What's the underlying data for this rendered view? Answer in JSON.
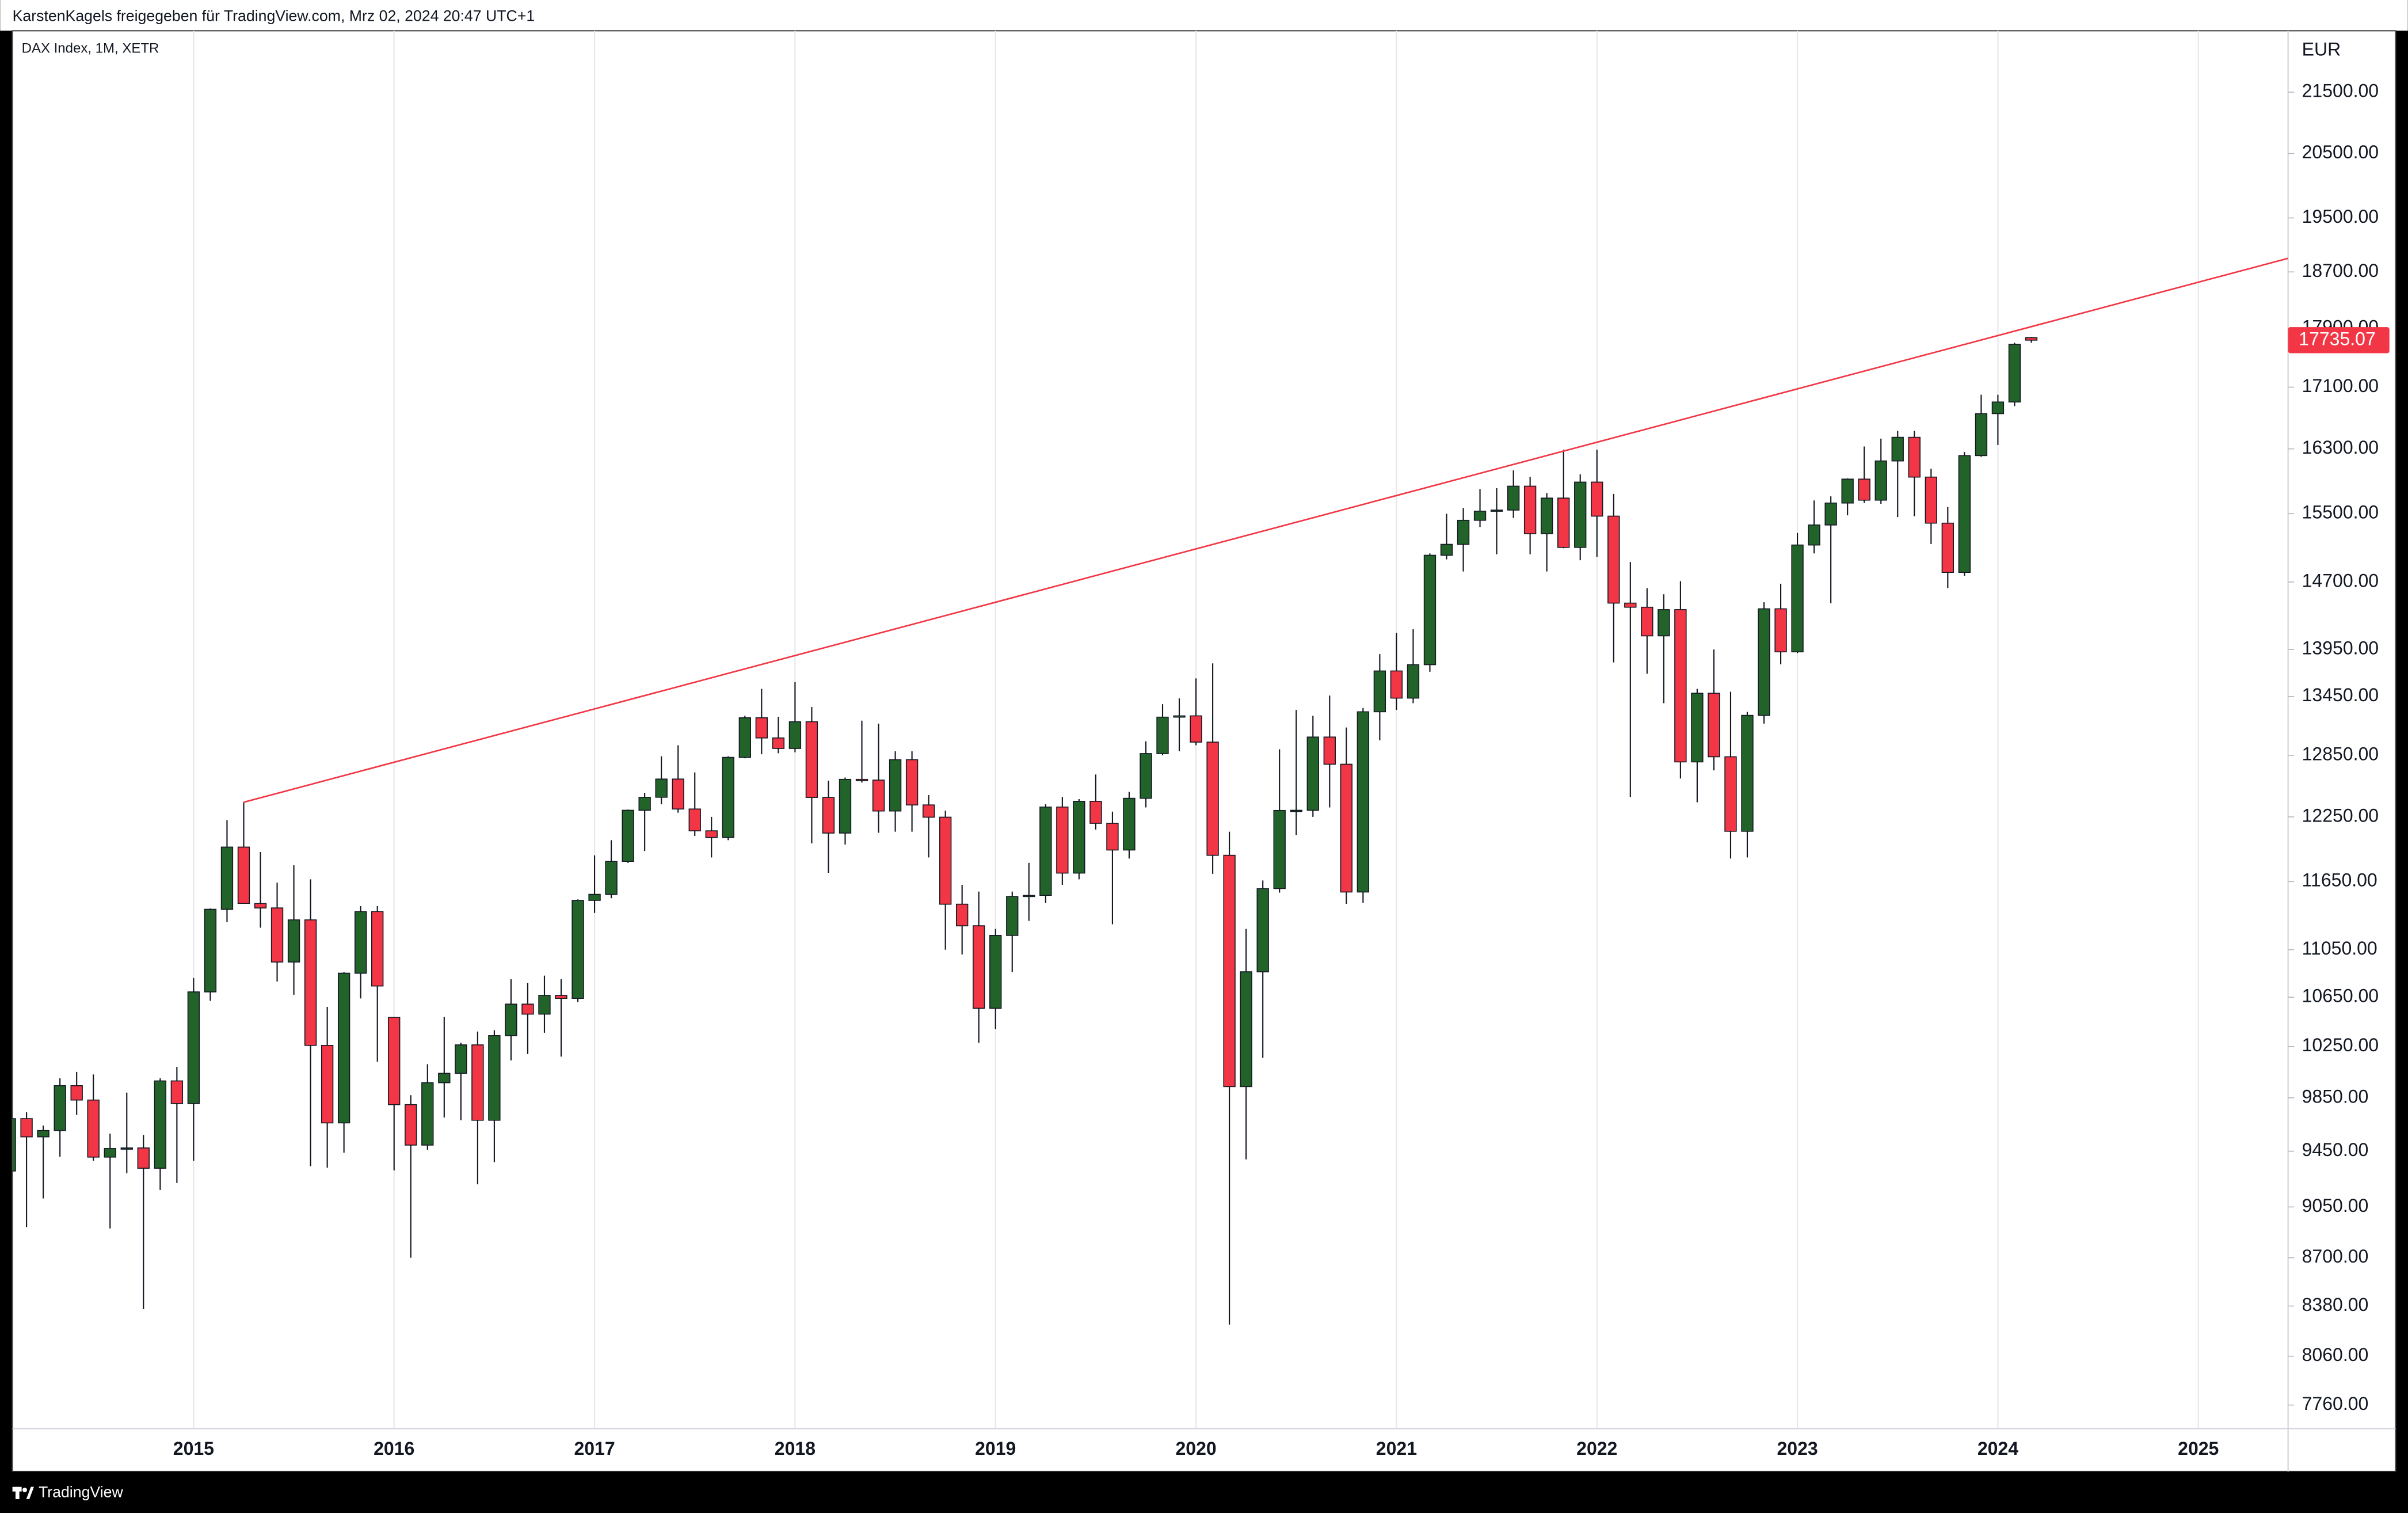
{
  "chart_data": {
    "type": "candlestick",
    "header": "KarstenKagels freigegeben für TradingView.com, Mrz 02, 2024 20:47 UTC+1",
    "title": "DAX Index, 1M, XETR",
    "currency": "EUR",
    "brand": "TradingView",
    "log_scale": true,
    "grid": "vertical",
    "up_color": "#22632a",
    "down_color": "#f23645",
    "ylim": [
      7620,
      22550
    ],
    "yticks": [
      {
        "value": 7760,
        "label": "7760.00"
      },
      {
        "value": 8060,
        "label": "8060.00"
      },
      {
        "value": 8380,
        "label": "8380.00"
      },
      {
        "value": 8700,
        "label": "8700.00"
      },
      {
        "value": 9050,
        "label": "9050.00"
      },
      {
        "value": 9450,
        "label": "9450.00"
      },
      {
        "value": 9850,
        "label": "9850.00"
      },
      {
        "value": 10250,
        "label": "10250.00"
      },
      {
        "value": 10650,
        "label": "10650.00"
      },
      {
        "value": 11050,
        "label": "11050.00"
      },
      {
        "value": 11650,
        "label": "11650.00"
      },
      {
        "value": 12250,
        "label": "12250.00"
      },
      {
        "value": 12850,
        "label": "12850.00"
      },
      {
        "value": 13450,
        "label": "13450.00"
      },
      {
        "value": 13950,
        "label": "13950.00"
      },
      {
        "value": 14700,
        "label": "14700.00"
      },
      {
        "value": 15500,
        "label": "15500.00"
      },
      {
        "value": 16300,
        "label": "16300.00"
      },
      {
        "value": 17100,
        "label": "17100.00"
      },
      {
        "value": 17900,
        "label": "17900.00"
      },
      {
        "value": 18700,
        "label": "18700.00"
      },
      {
        "value": 19500,
        "label": "19500.00"
      },
      {
        "value": 20500,
        "label": "20500.00"
      },
      {
        "value": 21500,
        "label": "21500.00"
      }
    ],
    "categories": [
      null,
      null,
      null,
      null,
      null,
      null,
      null,
      null,
      null,
      null,
      null,
      "2015",
      null,
      null,
      null,
      null,
      null,
      null,
      null,
      null,
      null,
      null,
      null,
      "2016",
      null,
      null,
      null,
      null,
      null,
      null,
      null,
      null,
      null,
      null,
      null,
      "2017",
      null,
      null,
      null,
      null,
      null,
      null,
      null,
      null,
      null,
      null,
      null,
      "2018",
      null,
      null,
      null,
      null,
      null,
      null,
      null,
      null,
      null,
      null,
      null,
      "2019",
      null,
      null,
      null,
      null,
      null,
      null,
      null,
      null,
      null,
      null,
      null,
      "2020",
      null,
      null,
      null,
      null,
      null,
      null,
      null,
      null,
      null,
      null,
      null,
      "2021",
      null,
      null,
      null,
      null,
      null,
      null,
      null,
      null,
      null,
      null,
      null,
      "2022",
      null,
      null,
      null,
      null,
      null,
      null,
      null,
      null,
      null,
      null,
      null,
      "2023",
      null,
      null,
      null,
      null,
      null,
      null,
      null,
      null,
      null,
      null,
      null,
      "2024",
      null,
      null,
      null,
      null,
      null,
      null,
      null,
      null,
      null,
      null,
      null,
      "2025",
      null,
      null,
      null,
      null
    ],
    "open": [
      9306,
      9692,
      9556,
      9603,
      9943,
      9833,
      9407,
      9470,
      9474,
      9326,
      9980,
      9806,
      10694,
      11402,
      11966,
      11454,
      11414,
      10945,
      11309,
      10259,
      9660,
      10850,
      11382,
      10485,
      9798,
      9495,
      9966,
      10039,
      10263,
      9680,
      10337,
      10593,
      10511,
      10665,
      10640,
      11481,
      11535,
      11834,
      12313,
      12438,
      12615,
      12325,
      12118,
      12056,
      12829,
      13230,
      13024,
      12918,
      13189,
      12436,
      12097,
      12612,
      12605,
      12306,
      12806,
      12364,
      12247,
      11447,
      11257,
      10559,
      11173,
      11516,
      11526,
      12344,
      11727,
      12399,
      12189,
      11939,
      12428,
      12867,
      13236,
      13249,
      12982,
      11890,
      9936,
      10862,
      11587,
      12311,
      12313,
      13033,
      12761,
      11556,
      13291,
      13719,
      13433,
      13786,
      15008,
      15136,
      15421,
      15531,
      15544,
      15835,
      15261,
      15689,
      15100,
      15885,
      15471,
      14461,
      14415,
      14098,
      14388,
      12784,
      13484,
      12835,
      12114,
      13254,
      14397,
      13924,
      15128,
      15365,
      15629,
      15922,
      15664,
      16148,
      16447,
      15947,
      15387,
      14810,
      16215,
      16752,
      16904,
      17770,
      null,
      null,
      null,
      null,
      null,
      null,
      null,
      null,
      null,
      null,
      null,
      null,
      null,
      null
    ],
    "high": [
      9710,
      9740,
      9640,
      10000,
      10050,
      10030,
      9580,
      9890,
      9570,
      10000,
      10090,
      10810,
      11410,
      12220,
      12390,
      11920,
      11640,
      11800,
      11670,
      10570,
      10860,
      11430,
      11430,
      10490,
      9870,
      10110,
      10490,
      10280,
      10370,
      10380,
      10800,
      10770,
      10830,
      10800,
      11490,
      11890,
      12030,
      12320,
      12480,
      12840,
      12950,
      12680,
      12250,
      12840,
      13250,
      13530,
      13240,
      13600,
      13340,
      12600,
      12630,
      13200,
      13170,
      12890,
      12890,
      12460,
      12310,
      11620,
      11560,
      11230,
      11560,
      11820,
      12370,
      12440,
      12420,
      12660,
      12300,
      12490,
      12990,
      13370,
      13430,
      13640,
      13800,
      12110,
      11230,
      11660,
      12910,
      13310,
      13250,
      13460,
      13130,
      13330,
      13900,
      14130,
      14170,
      15030,
      15500,
      15570,
      15800,
      15810,
      16030,
      15950,
      15750,
      16290,
      15980,
      16290,
      15740,
      14930,
      14630,
      14560,
      14710,
      13530,
      13950,
      13500,
      13290,
      14470,
      14680,
      15270,
      15660,
      15710,
      15930,
      16330,
      16430,
      16530,
      16530,
      16050,
      15580,
      16260,
      17000,
      17000,
      17700,
      17780,
      null,
      null,
      null,
      null,
      null,
      null,
      null,
      null,
      null,
      null,
      null,
      null,
      null,
      null
    ],
    "low": [
      9070,
      8910,
      9110,
      9410,
      9720,
      9380,
      8900,
      9290,
      8360,
      9170,
      9220,
      9380,
      10620,
      11290,
      11450,
      11240,
      10780,
      10670,
      9340,
      9330,
      9440,
      10640,
      10130,
      9310,
      8700,
      9460,
      9700,
      9680,
      9210,
      9370,
      10140,
      10190,
      10360,
      10170,
      10610,
      11370,
      11500,
      11820,
      11930,
      12370,
      12290,
      12070,
      11870,
      12030,
      12820,
      12860,
      12870,
      12880,
      12000,
      11730,
      11990,
      12580,
      12100,
      12110,
      12110,
      11870,
      11050,
      11010,
      10280,
      10390,
      10860,
      11300,
      11460,
      11620,
      11670,
      12130,
      11270,
      11860,
      12340,
      12850,
      12890,
      12950,
      11720,
      8260,
      9390,
      10160,
      11550,
      12080,
      12250,
      12340,
      11450,
      11460,
      13000,
      13310,
      13380,
      13710,
      14960,
      14820,
      15340,
      15020,
      15450,
      15020,
      14820,
      15090,
      14950,
      14990,
      13810,
      12440,
      13690,
      13380,
      12620,
      12390,
      12700,
      11860,
      11870,
      13170,
      13790,
      13910,
      15030,
      14460,
      15480,
      15630,
      15620,
      15460,
      15470,
      15140,
      14630,
      14770,
      16200,
      16350,
      16850,
      17700,
      null,
      null,
      null,
      null,
      null,
      null,
      null,
      null,
      null,
      null,
      null,
      null,
      null,
      null
    ],
    "close": [
      9692,
      9556,
      9603,
      9943,
      9833,
      9407,
      9470,
      9474,
      9326,
      9980,
      9806,
      10694,
      11402,
      11966,
      11454,
      11414,
      10945,
      11309,
      10259,
      9660,
      10850,
      11382,
      10743,
      9798,
      9495,
      9966,
      10039,
      10263,
      9680,
      10337,
      10593,
      10511,
      10665,
      10640,
      11481,
      11535,
      11834,
      12313,
      12438,
      12615,
      12325,
      12118,
      12056,
      12829,
      13230,
      13024,
      12918,
      13189,
      12436,
      12097,
      12612,
      12605,
      12306,
      12806,
      12364,
      12247,
      11447,
      11257,
      10559,
      11173,
      11516,
      11526,
      12344,
      11727,
      12399,
      12189,
      11939,
      12428,
      12867,
      13236,
      13249,
      12982,
      11890,
      9936,
      10862,
      11587,
      12311,
      12313,
      13033,
      12761,
      11556,
      13291,
      13719,
      13433,
      13786,
      15008,
      15136,
      15421,
      15531,
      15544,
      15835,
      15261,
      15689,
      15100,
      15885,
      15471,
      14461,
      14415,
      14098,
      14388,
      12784,
      13484,
      12835,
      12114,
      13254,
      14397,
      13924,
      15128,
      15365,
      15629,
      15922,
      15664,
      16148,
      16447,
      15947,
      15387,
      14810,
      16215,
      16752,
      16904,
      17678,
      17735.07,
      null,
      null,
      null,
      null,
      null,
      null,
      null,
      null,
      null,
      null,
      null,
      null,
      null,
      null
    ],
    "trendline": {
      "color": "#f23645",
      "x": [
        14,
        136.4
      ],
      "y": [
        12390,
        18900
      ]
    }
  }
}
